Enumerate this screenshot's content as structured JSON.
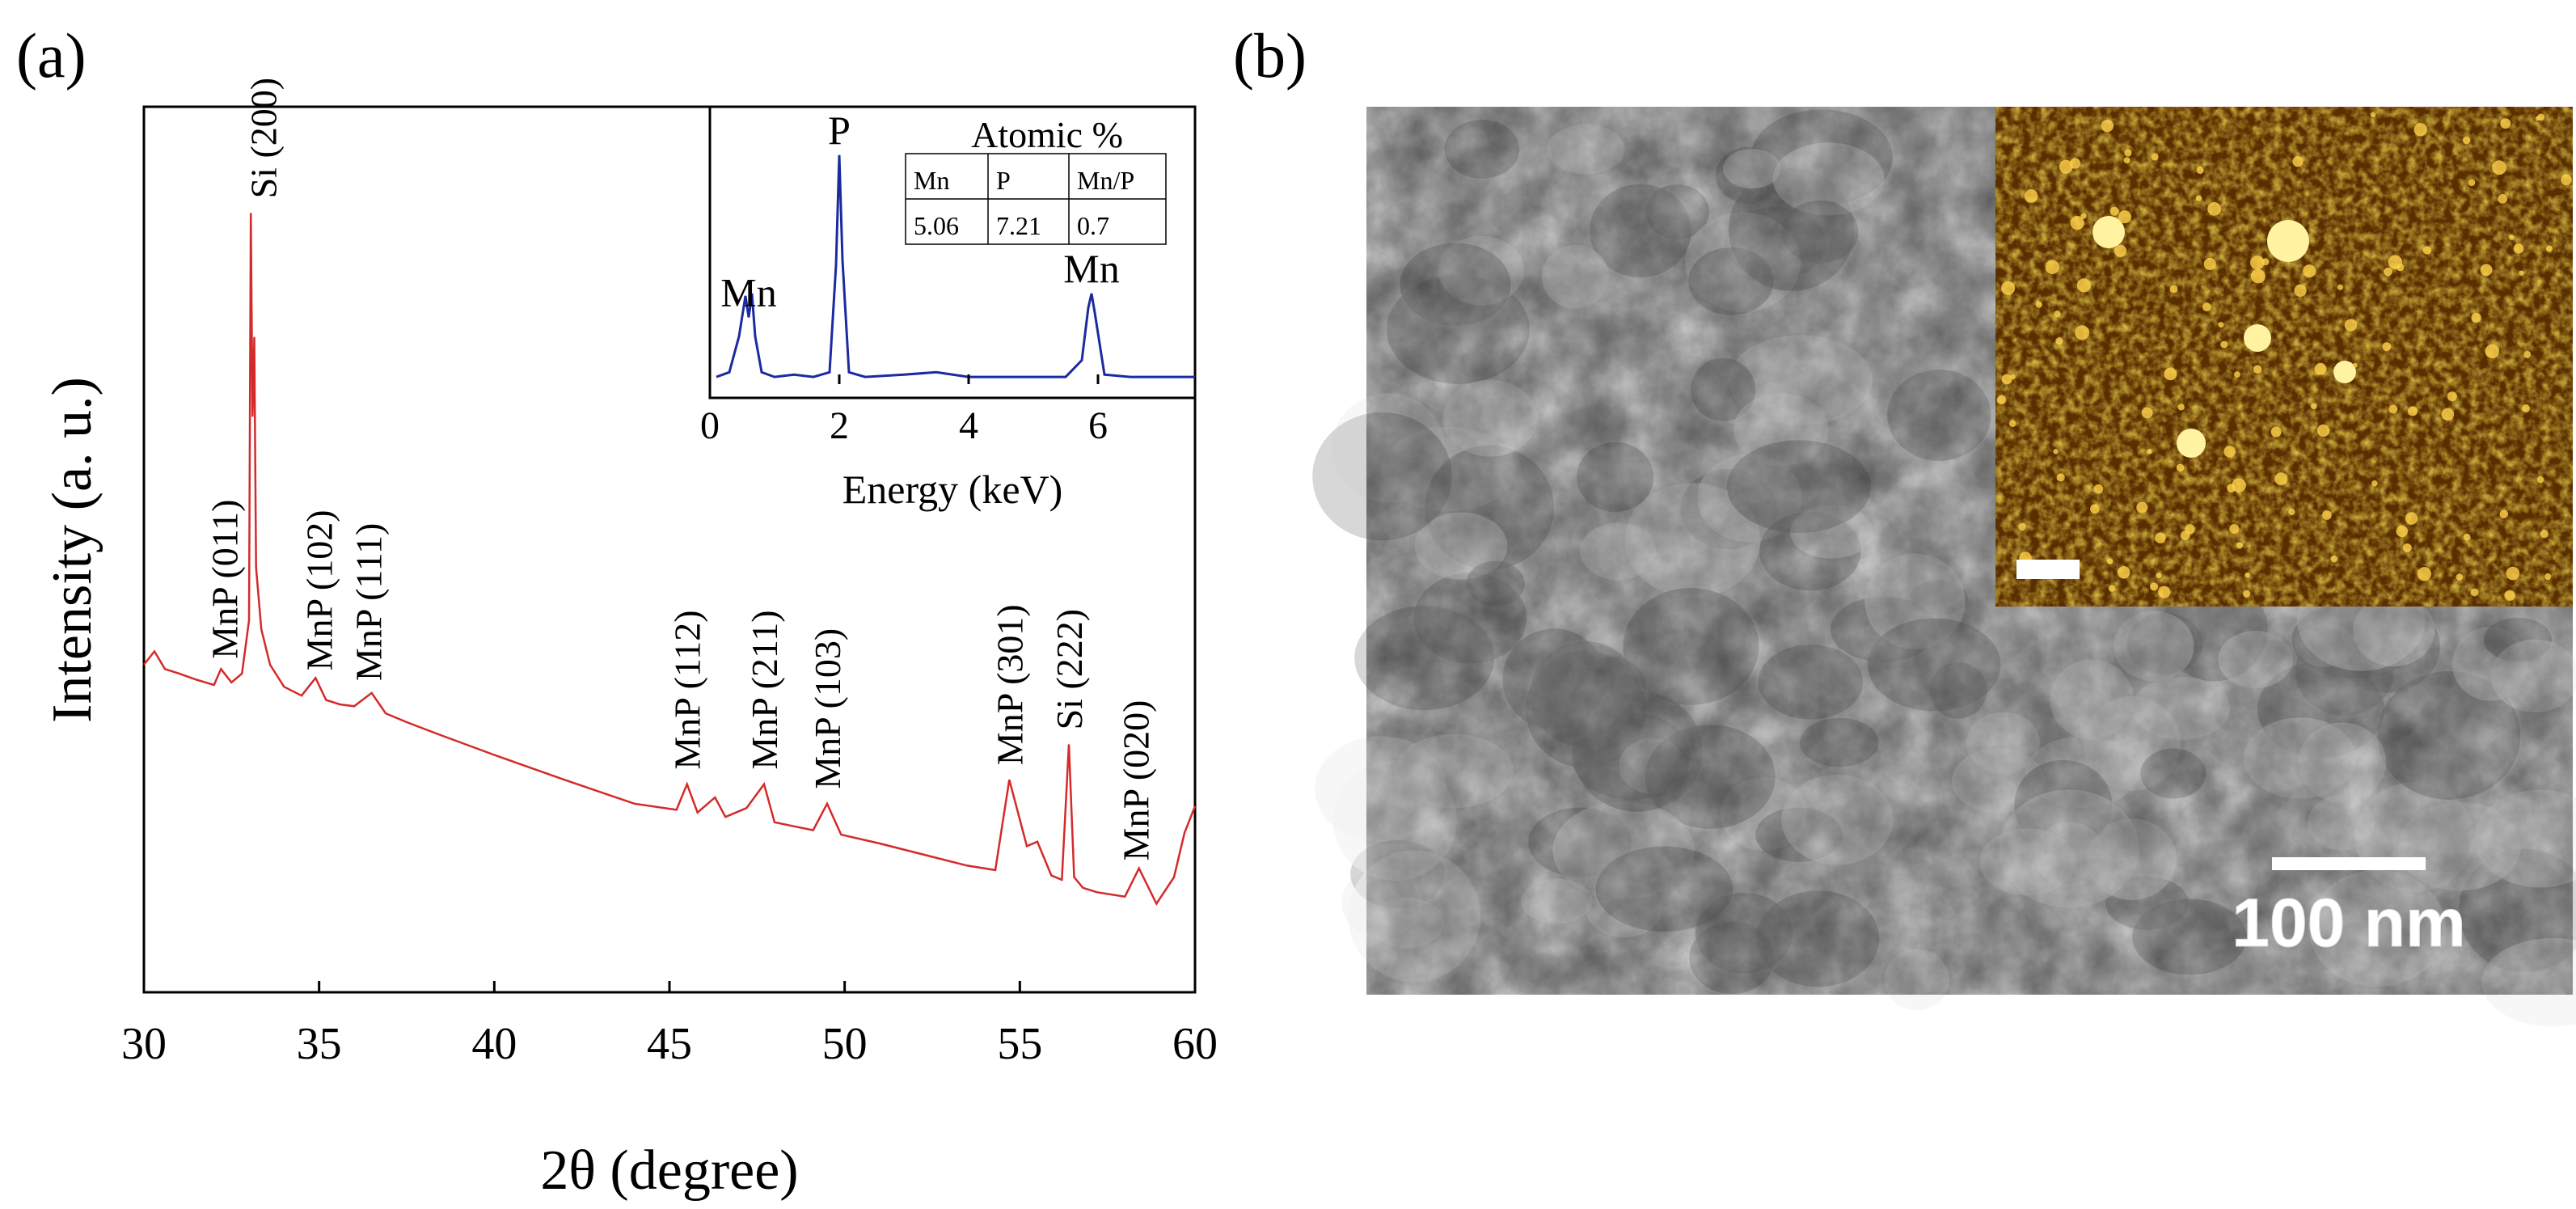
{
  "panels": {
    "a_label": "(a)",
    "b_label": "(b)"
  },
  "chart_data": [
    {
      "type": "line",
      "xlabel": "2θ (degree)",
      "ylabel": "Intensity (a. u.)",
      "xlim": [
        30,
        60
      ],
      "ylim": [
        0,
        100
      ],
      "x_ticks": [
        30,
        35,
        40,
        45,
        50,
        55,
        60
      ],
      "grid": false,
      "color": "#d42a2a",
      "series": [
        {
          "x": [
            30.0,
            30.3,
            30.6,
            31.0,
            31.5,
            32.0,
            32.2,
            32.5,
            32.8,
            33.0,
            33.05,
            33.1,
            33.15,
            33.2,
            33.35,
            33.6,
            34.0,
            34.5,
            34.9,
            35.2,
            35.6,
            36.0,
            36.5,
            36.9,
            37.5,
            38.5,
            40.0,
            42.0,
            44.0,
            45.2,
            45.5,
            45.8,
            46.3,
            46.6,
            47.2,
            47.7,
            48.0,
            48.6,
            49.1,
            49.5,
            49.9,
            51.0,
            52.5,
            53.5,
            54.3,
            54.7,
            54.9,
            55.2,
            55.5,
            55.9,
            56.2,
            56.4,
            56.55,
            56.8,
            57.2,
            58.0,
            58.4,
            58.9,
            59.4,
            59.7,
            60.0
          ],
          "y": [
            37.0,
            38.5,
            36.5,
            36.0,
            35.3,
            34.7,
            36.5,
            35.0,
            36.0,
            42.0,
            88.0,
            65.0,
            74.0,
            48.0,
            41.0,
            37.0,
            34.5,
            33.5,
            35.5,
            33.0,
            32.5,
            32.3,
            33.8,
            31.5,
            30.5,
            29.0,
            26.8,
            24.0,
            21.3,
            20.6,
            23.5,
            20.3,
            22.0,
            19.8,
            20.8,
            23.5,
            19.2,
            18.7,
            18.3,
            21.3,
            17.8,
            16.8,
            15.3,
            14.3,
            13.8,
            24.0,
            21.0,
            16.5,
            17.0,
            13.2,
            12.7,
            28.0,
            13.0,
            11.8,
            11.3,
            10.8,
            14.0,
            10.0,
            13.0,
            18.0,
            21.0
          ]
        }
      ],
      "annotations": [
        {
          "text": "MnP (011)",
          "x": 32.3
        },
        {
          "text": "Si (200)",
          "x": 33.4
        },
        {
          "text": "MnP (102)",
          "x": 35.0
        },
        {
          "text": "MnP (111)",
          "x": 36.4
        },
        {
          "text": "MnP (112)",
          "x": 45.5
        },
        {
          "text": "MnP (211)",
          "x": 47.7
        },
        {
          "text": "MnP (103)",
          "x": 49.5
        },
        {
          "text": "MnP (301)",
          "x": 54.7
        },
        {
          "text": "Si (222)",
          "x": 56.4
        },
        {
          "text": "MnP (020)",
          "x": 58.3
        }
      ]
    },
    {
      "type": "line",
      "xlabel": "Energy (keV)",
      "ylabel": "",
      "xlim": [
        0,
        7.5
      ],
      "ylim": [
        0,
        100
      ],
      "x_ticks": [
        0,
        2,
        4,
        6
      ],
      "grid": false,
      "color": "#1c2aa0",
      "series": [
        {
          "x": [
            0.1,
            0.3,
            0.45,
            0.55,
            0.6,
            0.65,
            0.7,
            0.8,
            1.0,
            1.3,
            1.6,
            1.85,
            1.95,
            2.0,
            2.05,
            2.15,
            2.4,
            3.0,
            3.5,
            4.0,
            4.5,
            5.0,
            5.5,
            5.75,
            5.85,
            5.9,
            5.95,
            6.1,
            6.5,
            7.0,
            7.5
          ],
          "y": [
            3,
            5,
            20,
            37,
            28,
            38,
            20,
            5,
            3,
            4,
            3,
            5,
            50,
            96,
            52,
            5,
            3,
            4,
            5,
            3,
            3,
            3,
            3,
            10,
            32,
            38,
            30,
            4,
            3,
            3,
            3
          ]
        }
      ],
      "annotations": [
        {
          "text": "Mn",
          "x": 0.6
        },
        {
          "text": "P",
          "x": 2.0
        },
        {
          "text": "Mn",
          "x": 5.9
        }
      ],
      "table": {
        "title": "Atomic %",
        "header": [
          "Mn",
          "P",
          "Mn/P"
        ],
        "values": [
          "5.06",
          "7.21",
          "0.7"
        ]
      }
    }
  ],
  "sem": {
    "scale_label": "100 nm"
  }
}
